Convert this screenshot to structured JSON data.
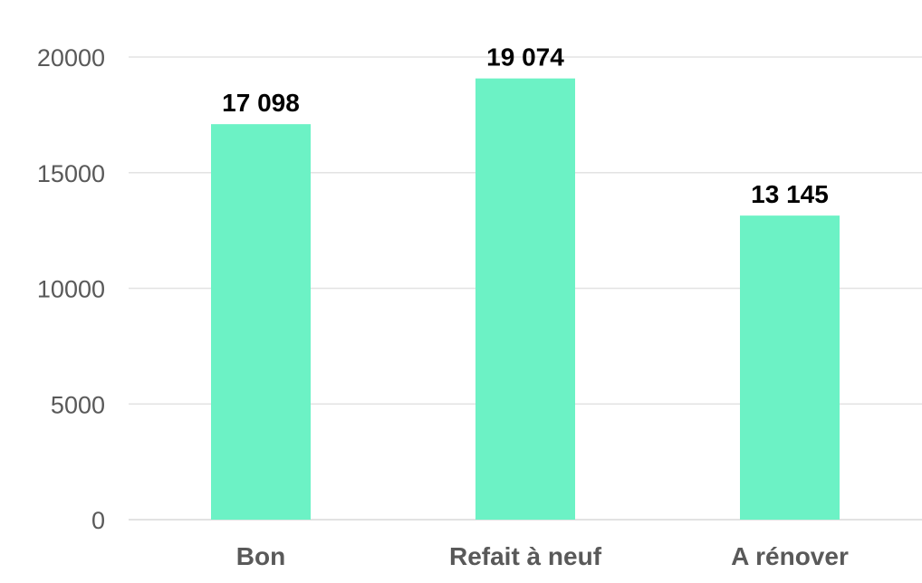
{
  "chart_data": {
    "type": "bar",
    "categories": [
      "Bon",
      "Refait à neuf",
      "A rénover"
    ],
    "values": [
      17098,
      19074,
      13145
    ],
    "data_labels": [
      "17 098",
      "19 074",
      "13 145"
    ],
    "title": "",
    "xlabel": "",
    "ylabel": "",
    "ylim": [
      0,
      20000
    ],
    "yticks": [
      0,
      5000,
      10000,
      15000,
      20000
    ],
    "ytick_labels": [
      "0",
      "5000",
      "10000",
      "15000",
      "20000"
    ],
    "grid": true,
    "legend": "none",
    "bar_color": "#6CF2C5"
  }
}
